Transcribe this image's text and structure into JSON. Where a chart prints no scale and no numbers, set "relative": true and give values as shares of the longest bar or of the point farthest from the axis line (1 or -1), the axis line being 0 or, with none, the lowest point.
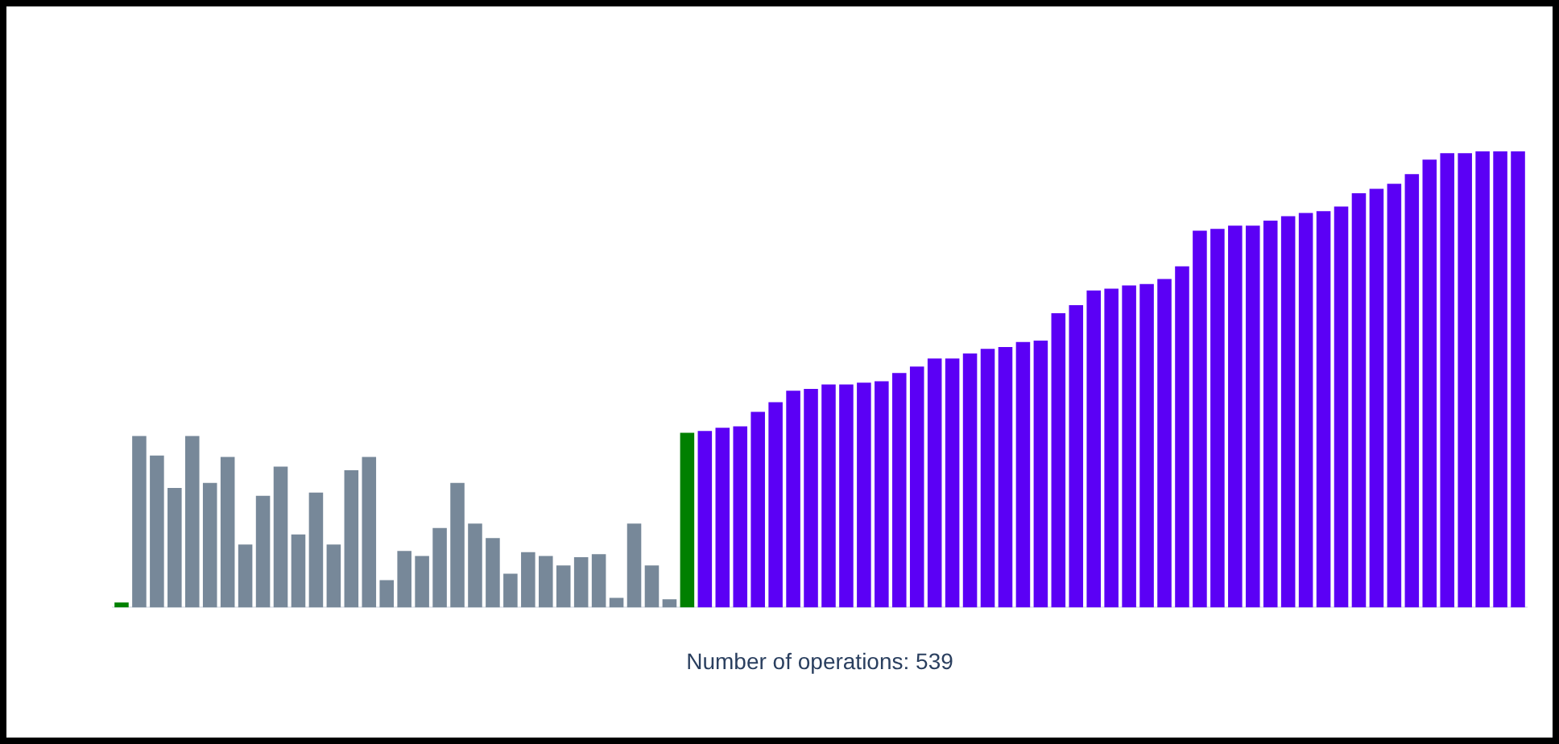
{
  "chart_data": {
    "type": "bar",
    "xlabel": "Number of operations: 539",
    "relative": true,
    "grid": false,
    "categories": [
      null,
      null,
      null,
      null,
      null,
      null,
      null,
      null,
      null,
      null,
      null,
      null,
      null,
      null,
      null,
      null,
      null,
      null,
      null,
      null,
      null,
      null,
      null,
      null,
      null,
      null,
      null,
      null,
      null,
      null,
      null,
      null,
      null,
      null,
      null,
      null,
      null,
      null,
      null,
      null,
      null,
      null,
      null,
      null,
      null,
      null,
      null,
      null,
      null,
      null,
      null,
      null,
      null,
      null,
      null,
      null,
      null,
      null,
      null,
      null,
      null,
      null,
      null,
      null,
      null,
      null,
      null,
      null,
      null,
      null,
      null,
      null,
      null,
      null,
      null,
      null,
      null,
      null,
      null,
      null
    ],
    "values": [
      0.011,
      0.376,
      0.333,
      0.262,
      0.376,
      0.273,
      0.33,
      0.138,
      0.245,
      0.309,
      0.16,
      0.252,
      0.138,
      0.301,
      0.33,
      0.06,
      0.124,
      0.113,
      0.174,
      0.273,
      0.184,
      0.152,
      0.074,
      0.121,
      0.113,
      0.092,
      0.11,
      0.117,
      0.021,
      0.184,
      0.092,
      0.018,
      0.383,
      0.387,
      0.394,
      0.397,
      0.429,
      0.45,
      0.475,
      0.479,
      0.489,
      0.489,
      0.493,
      0.496,
      0.514,
      0.528,
      0.546,
      0.546,
      0.557,
      0.567,
      0.571,
      0.582,
      0.585,
      0.645,
      0.663,
      0.695,
      0.699,
      0.706,
      0.709,
      0.72,
      0.748,
      0.826,
      0.83,
      0.837,
      0.837,
      0.848,
      0.858,
      0.865,
      0.869,
      0.879,
      0.908,
      0.918,
      0.929,
      0.95,
      0.982,
      0.996,
      0.996,
      1,
      1,
      1
    ],
    "colors": [
      "#008000",
      "#778899",
      "#778899",
      "#778899",
      "#778899",
      "#778899",
      "#778899",
      "#778899",
      "#778899",
      "#778899",
      "#778899",
      "#778899",
      "#778899",
      "#778899",
      "#778899",
      "#778899",
      "#778899",
      "#778899",
      "#778899",
      "#778899",
      "#778899",
      "#778899",
      "#778899",
      "#778899",
      "#778899",
      "#778899",
      "#778899",
      "#778899",
      "#778899",
      "#778899",
      "#778899",
      "#778899",
      "#008000",
      "#5b00f5",
      "#5b00f5",
      "#5b00f5",
      "#5b00f5",
      "#5b00f5",
      "#5b00f5",
      "#5b00f5",
      "#5b00f5",
      "#5b00f5",
      "#5b00f5",
      "#5b00f5",
      "#5b00f5",
      "#5b00f5",
      "#5b00f5",
      "#5b00f5",
      "#5b00f5",
      "#5b00f5",
      "#5b00f5",
      "#5b00f5",
      "#5b00f5",
      "#5b00f5",
      "#5b00f5",
      "#5b00f5",
      "#5b00f5",
      "#5b00f5",
      "#5b00f5",
      "#5b00f5",
      "#5b00f5",
      "#5b00f5",
      "#5b00f5",
      "#5b00f5",
      "#5b00f5",
      "#5b00f5",
      "#5b00f5",
      "#5b00f5",
      "#5b00f5",
      "#5b00f5",
      "#5b00f5",
      "#5b00f5",
      "#5b00f5",
      "#5b00f5",
      "#5b00f5",
      "#5b00f5",
      "#5b00f5",
      "#5b00f5",
      "#5b00f5",
      "#5b00f5"
    ]
  }
}
